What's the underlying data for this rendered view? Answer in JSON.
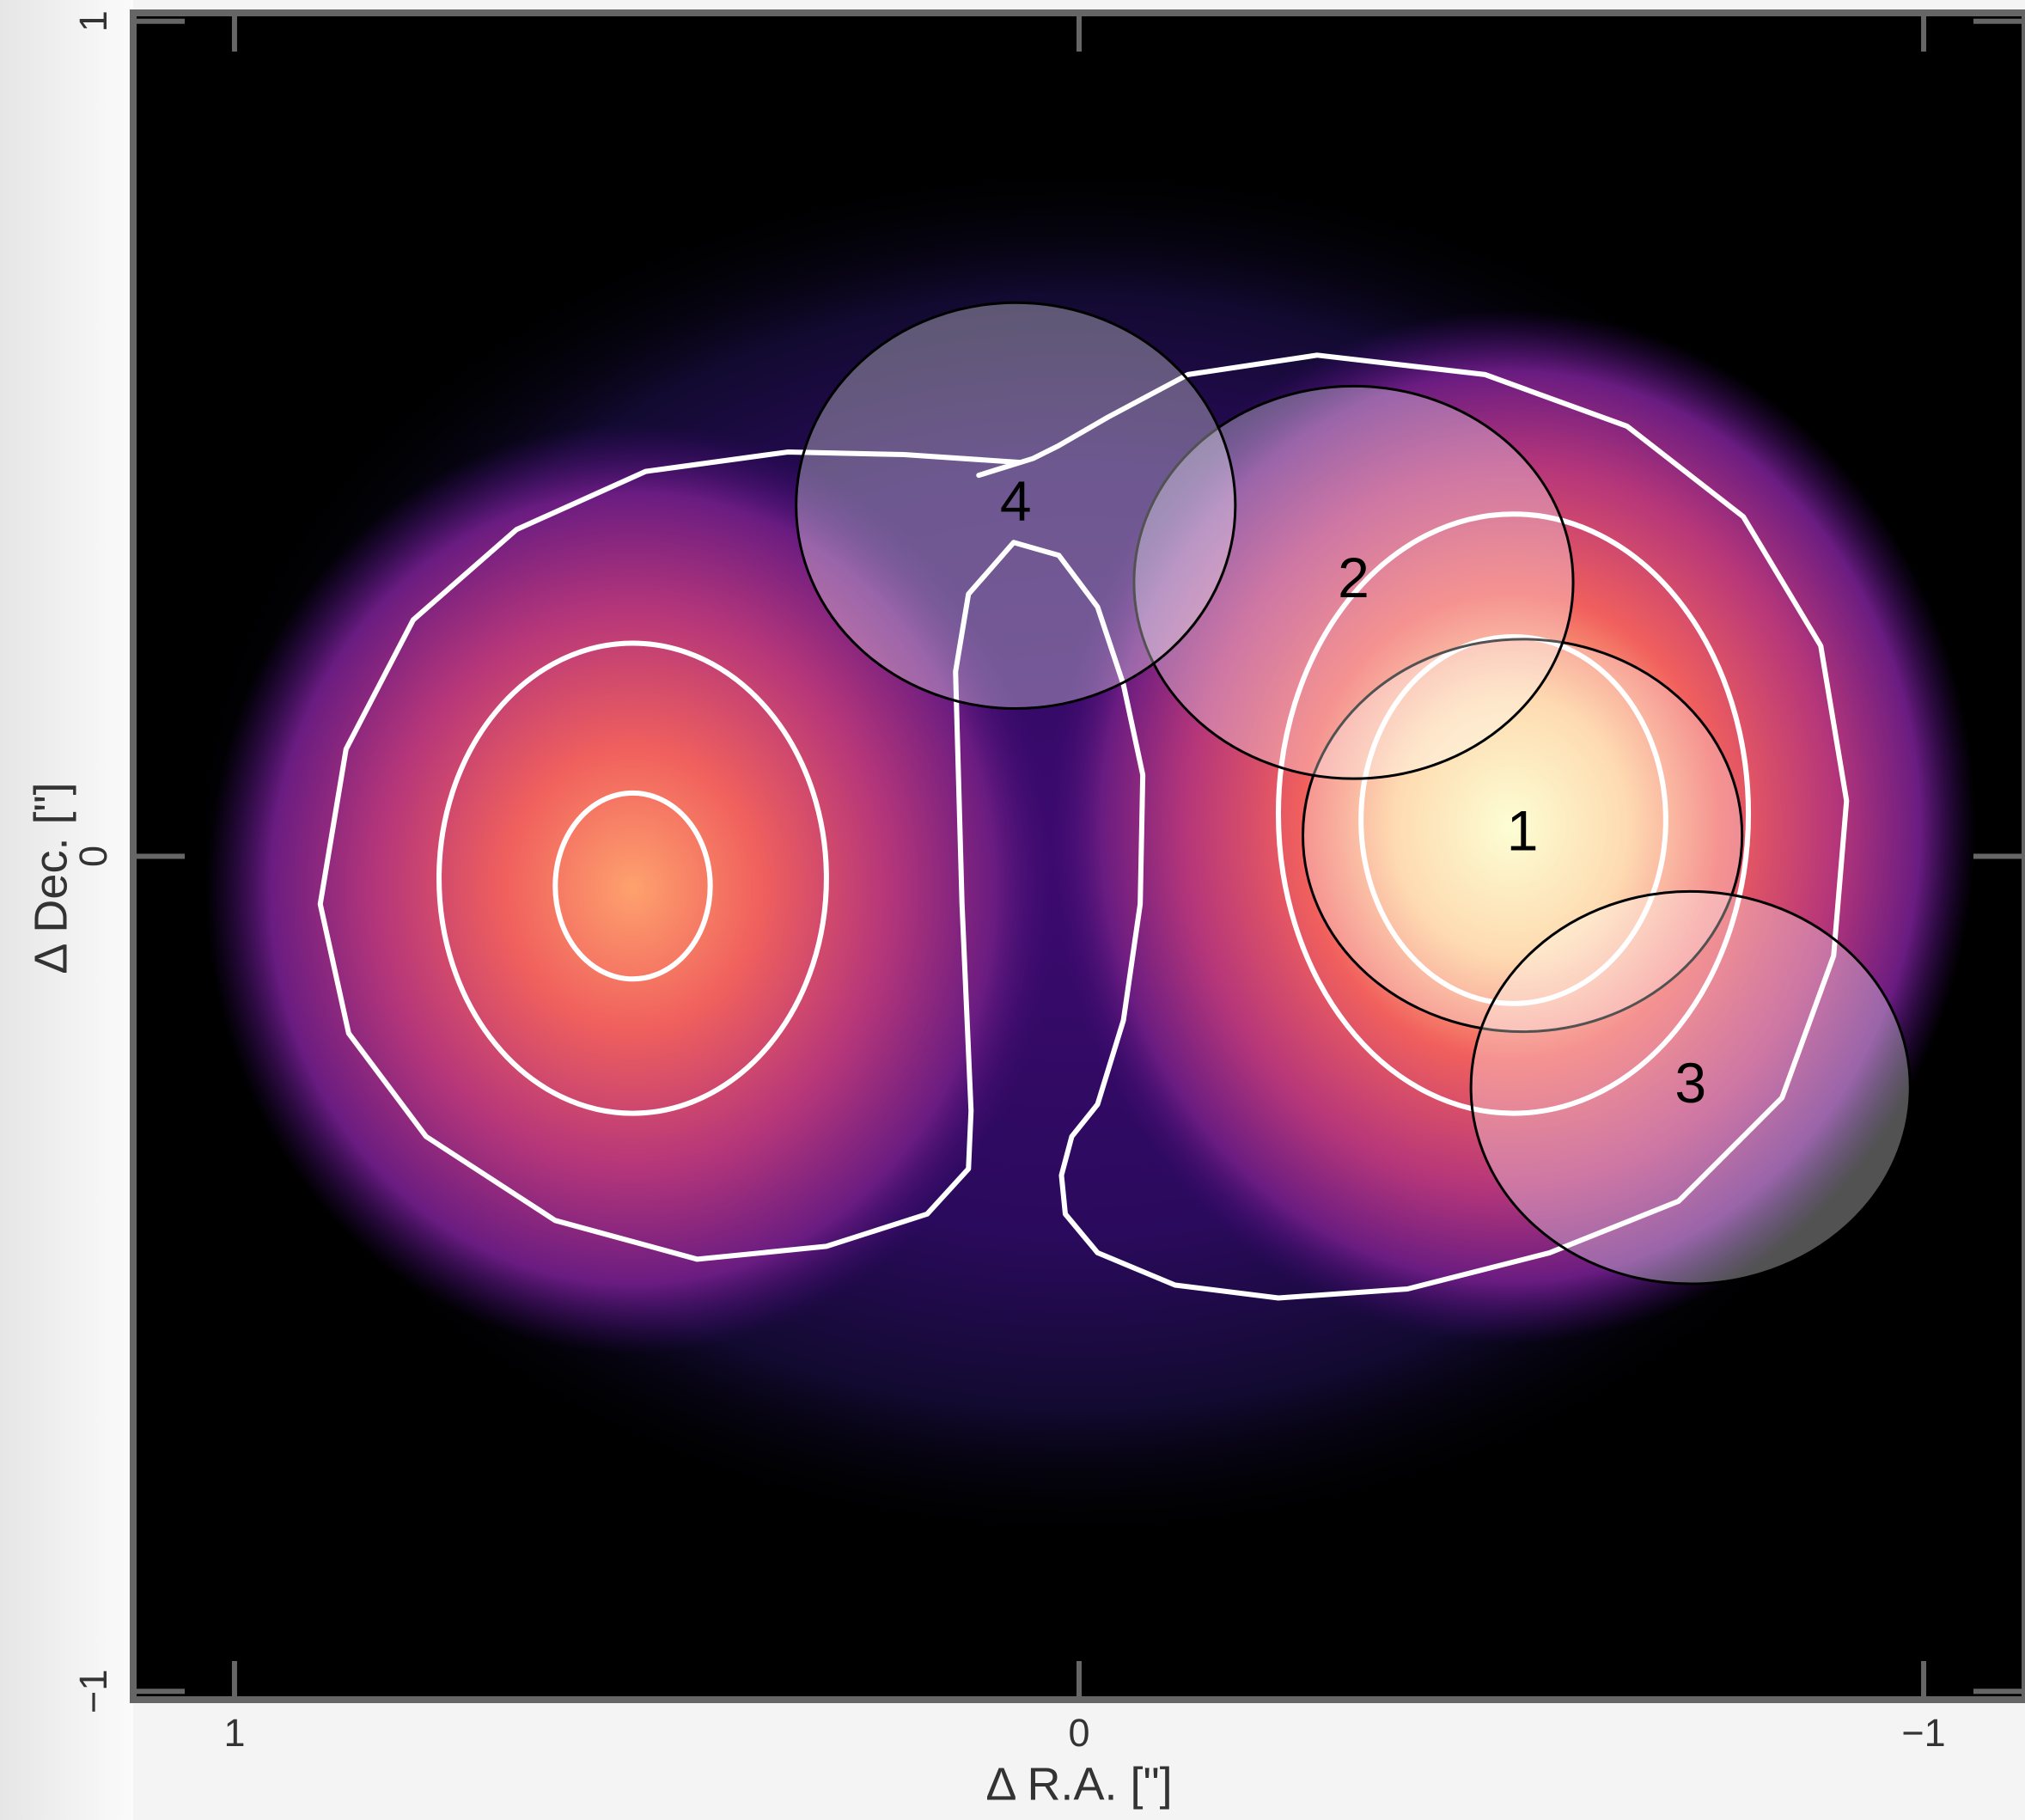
{
  "chart_data": {
    "type": "image",
    "x_label": "Δ R.A. [\"]",
    "y_label": "Δ Dec. [\"]",
    "xlim": [
      1.12,
      -1.12
    ],
    "ylim": [
      -1.01,
      1.01
    ],
    "xticks": [
      1,
      0,
      {
        "value": -1,
        "label": "−1"
      }
    ],
    "yticks": [
      {
        "value": -1,
        "label": "−1"
      },
      0,
      1
    ],
    "ellipses": [
      {
        "label": "1",
        "x": -0.525,
        "y": 0.025,
        "rx": 0.26,
        "ry": 0.235
      },
      {
        "label": "2",
        "x": -0.325,
        "y": 0.328,
        "rx": 0.26,
        "ry": 0.235
      },
      {
        "label": "3",
        "x": -0.724,
        "y": -0.277,
        "rx": 0.26,
        "ry": 0.235
      },
      {
        "label": "4",
        "x": 0.075,
        "y": 0.42,
        "rx": 0.26,
        "ry": 0.243
      }
    ]
  }
}
